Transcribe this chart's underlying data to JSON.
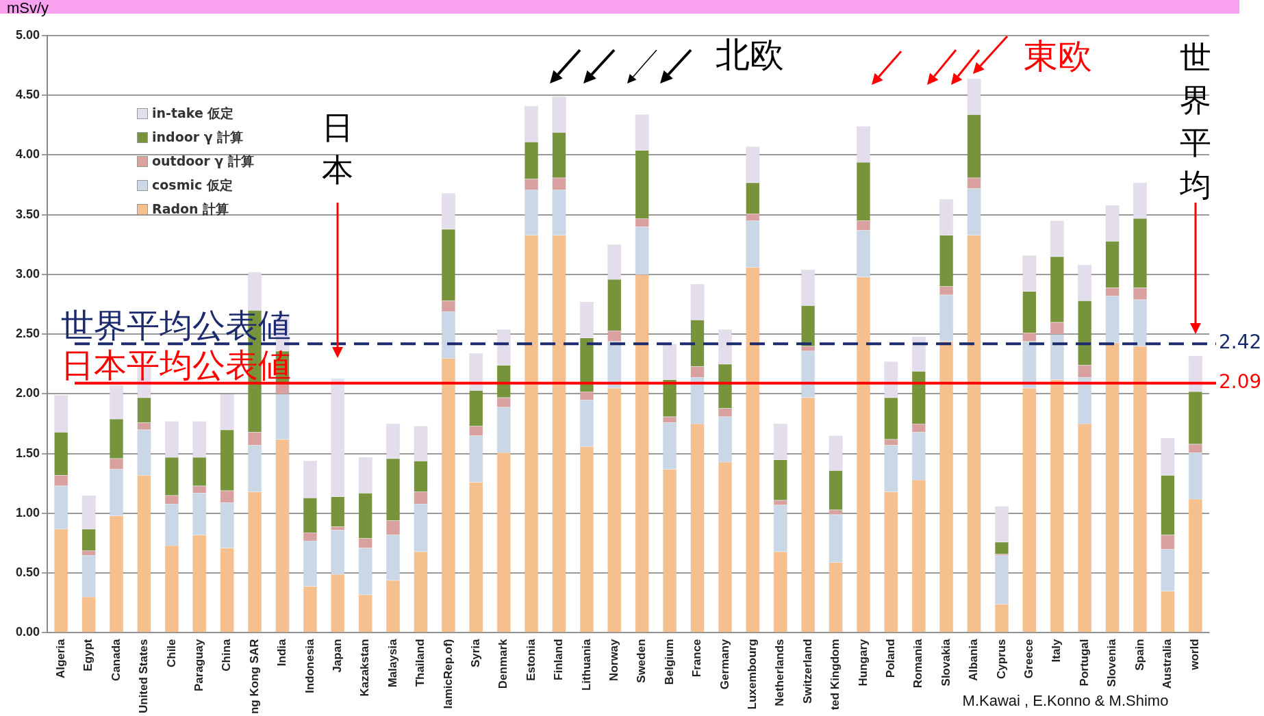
{
  "chart_data": {
    "type": "bar",
    "stacked": true,
    "ylabel": "mSv/y",
    "categories": [
      "Algeria",
      "Egypt",
      "Canada",
      "United States",
      "Chile",
      "Paraguay",
      "China",
      "ng Kong SAR",
      "India",
      "Indonesia",
      "Japan",
      "Kazakstan",
      "Malaysia",
      "Thailand",
      "lamicRep.of)",
      "Syria",
      "Denmark",
      "Estonia",
      "Finland",
      "Lithuania",
      "Norway",
      "Sweden",
      "Belgium",
      "France",
      "Germany",
      "Luxembourg",
      "Netherlands",
      "Switzerland",
      "ted Kingdom",
      "Hungary",
      "Poland",
      "Romania",
      "Slovakia",
      "Albania",
      "Cyprus",
      "Greece",
      "Italy",
      "Portugal",
      "Slovenia",
      "Spain",
      "Australia",
      "world"
    ],
    "series": [
      {
        "name": "Radon 計算",
        "color": "#f5bf8e",
        "values": [
          0.87,
          0.3,
          0.98,
          1.32,
          0.73,
          0.82,
          0.71,
          1.18,
          1.62,
          0.39,
          0.49,
          0.32,
          0.44,
          0.68,
          2.3,
          1.26,
          1.51,
          3.33,
          3.33,
          1.56,
          2.05,
          3.0,
          1.37,
          1.75,
          1.43,
          3.06,
          0.68,
          1.97,
          0.59,
          2.98,
          1.18,
          1.28,
          2.44,
          3.33,
          0.24,
          2.05,
          2.12,
          1.75,
          2.43,
          2.4,
          0.35,
          1.12
        ]
      },
      {
        "name": "cosmic 仮定",
        "color": "#c9d7e6",
        "values": [
          0.36,
          0.35,
          0.39,
          0.38,
          0.35,
          0.35,
          0.38,
          0.39,
          0.38,
          0.38,
          0.37,
          0.39,
          0.38,
          0.4,
          0.39,
          0.39,
          0.38,
          0.38,
          0.38,
          0.39,
          0.39,
          0.4,
          0.39,
          0.39,
          0.38,
          0.39,
          0.39,
          0.39,
          0.4,
          0.39,
          0.39,
          0.4,
          0.39,
          0.39,
          0.41,
          0.39,
          0.38,
          0.39,
          0.39,
          0.39,
          0.35,
          0.39
        ]
      },
      {
        "name": "outdoor γ 計算",
        "color": "#d9a0a0",
        "values": [
          0.09,
          0.04,
          0.09,
          0.06,
          0.07,
          0.06,
          0.1,
          0.11,
          0.09,
          0.07,
          0.03,
          0.08,
          0.12,
          0.1,
          0.09,
          0.08,
          0.08,
          0.09,
          0.1,
          0.07,
          0.09,
          0.07,
          0.05,
          0.09,
          0.07,
          0.06,
          0.04,
          0.04,
          0.04,
          0.08,
          0.05,
          0.07,
          0.07,
          0.09,
          0.01,
          0.07,
          0.1,
          0.1,
          0.07,
          0.1,
          0.12,
          0.07
        ]
      },
      {
        "name": "indoor γ 計算",
        "color": "#77933c",
        "values": [
          0.36,
          0.18,
          0.33,
          0.21,
          0.32,
          0.24,
          0.51,
          1.02,
          0.27,
          0.29,
          0.25,
          0.38,
          0.52,
          0.26,
          0.6,
          0.3,
          0.27,
          0.31,
          0.38,
          0.45,
          0.43,
          0.57,
          0.31,
          0.39,
          0.37,
          0.26,
          0.34,
          0.34,
          0.33,
          0.49,
          0.35,
          0.44,
          0.43,
          0.53,
          0.1,
          0.35,
          0.55,
          0.54,
          0.39,
          0.58,
          0.5,
          0.44
        ]
      },
      {
        "name": "in-take 仮定",
        "color": "#e4deec",
        "values": [
          0.31,
          0.28,
          0.28,
          0.27,
          0.3,
          0.3,
          0.3,
          0.32,
          0.31,
          0.31,
          0.99,
          0.3,
          0.29,
          0.29,
          0.3,
          0.31,
          0.3,
          0.3,
          0.3,
          0.3,
          0.29,
          0.3,
          0.3,
          0.3,
          0.29,
          0.3,
          0.3,
          0.3,
          0.29,
          0.3,
          0.3,
          0.29,
          0.3,
          0.3,
          0.3,
          0.3,
          0.3,
          0.3,
          0.3,
          0.3,
          0.31,
          0.3
        ]
      }
    ],
    "ylim": [
      0,
      5
    ],
    "yticks": [
      {
        "value": 0,
        "label": "0.00"
      },
      {
        "value": 0.5,
        "label": "0.50"
      },
      {
        "value": 1,
        "label": "1.00"
      },
      {
        "value": 1.5,
        "label": "1.50"
      },
      {
        "value": 2,
        "label": "2.00"
      },
      {
        "value": 2.5,
        "label": "2.50"
      },
      {
        "value": 3,
        "label": "3.00"
      },
      {
        "value": 3.5,
        "label": "3.50"
      },
      {
        "value": 4,
        "label": "4.00"
      },
      {
        "value": 4.5,
        "label": "4.50"
      },
      {
        "value": 5,
        "label": "5.00"
      }
    ],
    "grid": "y",
    "legend": "top left",
    "ref_lines": [
      {
        "axis": "y",
        "value": 2.42,
        "label": "2.42",
        "color": "#1a2a6c",
        "line_style": "dashed"
      },
      {
        "axis": "y",
        "value": 2.09,
        "label": "2.09",
        "color": "#ff0000",
        "line_style": "solid"
      }
    ],
    "annotations": [
      {
        "text": "日本",
        "x": "Japan"
      },
      "北欧",
      "東欧",
      {
        "text": "世界平均",
        "x": "world"
      },
      {
        "text": "世界平均公表値",
        "y": 2.42
      },
      {
        "text": "日本平均公表値",
        "y": 2.09
      },
      "M.Kawai , E.Konno & M.Shimo"
    ]
  }
}
